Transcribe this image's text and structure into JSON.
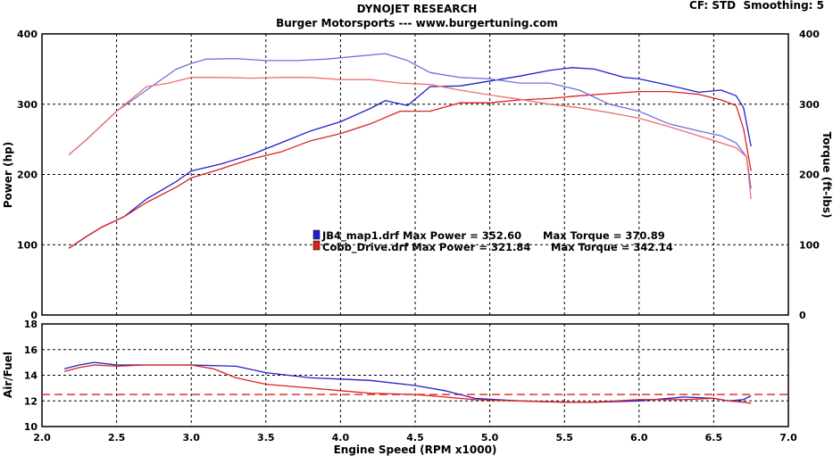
{
  "header": {
    "title": "DYNOJET RESEARCH",
    "subtitle": "Burger Motorsports --- www.burgertuning.com",
    "settings": "CF: STD  Smoothing: 5"
  },
  "chart_data": [
    {
      "type": "line",
      "panel": "power-torque",
      "ylabel_left": "Power (hp)",
      "ylabel_right": "Torque (ft-lbs)",
      "xlim": [
        2.0,
        7.0
      ],
      "ylim": [
        0,
        400
      ],
      "grid": true,
      "yticks": [
        "0",
        "100",
        "200",
        "300",
        "400"
      ],
      "legend_entries": [
        {
          "file": "JB4_map1.drf",
          "label": "JB4_map1.drf Max Power = 352.60",
          "torque_label": "Max Torque = 370.89",
          "color": "#1f1fcc"
        },
        {
          "file": "Cobb_Drive.drf",
          "label": "Cobb_Drive.drf Max Power = 321.84",
          "torque_label": "Max Torque = 342.14",
          "color": "#dd2020"
        }
      ],
      "series": [
        {
          "name": "JB4_map1.drf",
          "measure": "Power",
          "color": "#1f1fcc",
          "x": [
            2.18,
            2.3,
            2.4,
            2.55,
            2.7,
            2.9,
            3.0,
            3.2,
            3.4,
            3.6,
            3.8,
            4.0,
            4.2,
            4.3,
            4.45,
            4.6,
            4.8,
            5.0,
            5.2,
            5.4,
            5.55,
            5.7,
            5.9,
            6.0,
            6.2,
            6.4,
            6.55,
            6.65,
            6.7,
            6.75
          ],
          "y": [
            95,
            112,
            125,
            140,
            165,
            190,
            205,
            215,
            228,
            245,
            262,
            275,
            294,
            305,
            298,
            325,
            326,
            333,
            340,
            348,
            352,
            350,
            338,
            336,
            327,
            317,
            320,
            312,
            295,
            240
          ]
        },
        {
          "name": "Cobb_Drive.drf",
          "measure": "Power",
          "color": "#dd2020",
          "x": [
            2.18,
            2.3,
            2.4,
            2.55,
            2.7,
            2.9,
            3.0,
            3.2,
            3.4,
            3.6,
            3.8,
            4.0,
            4.2,
            4.4,
            4.6,
            4.8,
            5.0,
            5.2,
            5.4,
            5.6,
            5.8,
            6.0,
            6.2,
            6.4,
            6.55,
            6.65,
            6.7,
            6.75
          ],
          "y": [
            95,
            112,
            125,
            140,
            160,
            182,
            195,
            208,
            222,
            232,
            248,
            258,
            272,
            290,
            290,
            302,
            302,
            306,
            308,
            312,
            315,
            318,
            318,
            314,
            306,
            298,
            265,
            205
          ]
        },
        {
          "name": "JB4_map1.drf",
          "measure": "Torque",
          "color": "#6f6fe0",
          "x": [
            2.18,
            2.3,
            2.5,
            2.7,
            2.9,
            3.0,
            3.1,
            3.3,
            3.5,
            3.7,
            3.9,
            4.1,
            4.3,
            4.45,
            4.6,
            4.8,
            5.0,
            5.2,
            5.4,
            5.6,
            5.8,
            6.0,
            6.2,
            6.4,
            6.55,
            6.65,
            6.72,
            6.75
          ],
          "y": [
            228,
            250,
            290,
            320,
            350,
            358,
            364,
            365,
            362,
            362,
            364,
            368,
            372,
            362,
            345,
            338,
            336,
            330,
            330,
            320,
            300,
            290,
            272,
            262,
            255,
            245,
            225,
            180
          ]
        },
        {
          "name": "Cobb_Drive.drf",
          "measure": "Torque",
          "color": "#ec7070",
          "x": [
            2.18,
            2.3,
            2.5,
            2.7,
            2.85,
            3.0,
            3.2,
            3.4,
            3.6,
            3.8,
            4.0,
            4.2,
            4.4,
            4.6,
            4.8,
            5.0,
            5.2,
            5.4,
            5.6,
            5.8,
            6.0,
            6.2,
            6.4,
            6.55,
            6.65,
            6.72,
            6.75
          ],
          "y": [
            228,
            250,
            290,
            325,
            330,
            338,
            338,
            337,
            338,
            338,
            335,
            335,
            330,
            328,
            320,
            313,
            307,
            300,
            295,
            288,
            280,
            268,
            255,
            245,
            238,
            225,
            165
          ]
        }
      ]
    },
    {
      "type": "line",
      "panel": "air-fuel",
      "ylabel": "Air/Fuel",
      "xlabel": "Engine Speed (RPM x1000)",
      "xlim": [
        2.0,
        7.0
      ],
      "ylim": [
        10,
        18
      ],
      "grid": true,
      "xticks": [
        "2.0",
        "2.5",
        "3.0",
        "3.5",
        "4.0",
        "4.5",
        "5.0",
        "5.5",
        "6.0",
        "6.5",
        "7.0"
      ],
      "yticks": [
        "10",
        "12",
        "14",
        "16",
        "18"
      ],
      "reference_line": {
        "y": 12.5,
        "color": "#dd2020",
        "style": "dashed"
      },
      "series": [
        {
          "name": "JB4_map1.drf",
          "measure": "AFR",
          "color": "#1f1fcc",
          "x": [
            2.15,
            2.25,
            2.35,
            2.5,
            2.7,
            3.0,
            3.3,
            3.5,
            3.8,
            4.0,
            4.2,
            4.5,
            4.7,
            4.9,
            5.2,
            5.5,
            5.7,
            6.0,
            6.3,
            6.5,
            6.6,
            6.7,
            6.75
          ],
          "y": [
            14.5,
            14.8,
            15.0,
            14.8,
            14.8,
            14.8,
            14.7,
            14.2,
            13.8,
            13.7,
            13.6,
            13.2,
            12.8,
            12.2,
            12.0,
            11.9,
            11.9,
            12.0,
            12.3,
            12.2,
            12.0,
            12.1,
            12.4
          ]
        },
        {
          "name": "Cobb_Drive.drf",
          "measure": "AFR",
          "color": "#dd2020",
          "x": [
            2.15,
            2.25,
            2.35,
            2.5,
            2.7,
            3.0,
            3.15,
            3.3,
            3.5,
            3.8,
            4.0,
            4.2,
            4.5,
            4.7,
            4.9,
            5.2,
            5.5,
            5.7,
            6.0,
            6.3,
            6.5,
            6.6,
            6.7,
            6.75
          ],
          "y": [
            14.3,
            14.6,
            14.8,
            14.7,
            14.8,
            14.8,
            14.5,
            13.8,
            13.3,
            13.0,
            12.8,
            12.6,
            12.5,
            12.3,
            12.1,
            12.0,
            11.9,
            11.9,
            12.1,
            12.1,
            12.2,
            12.0,
            11.9,
            11.8
          ]
        }
      ]
    }
  ]
}
